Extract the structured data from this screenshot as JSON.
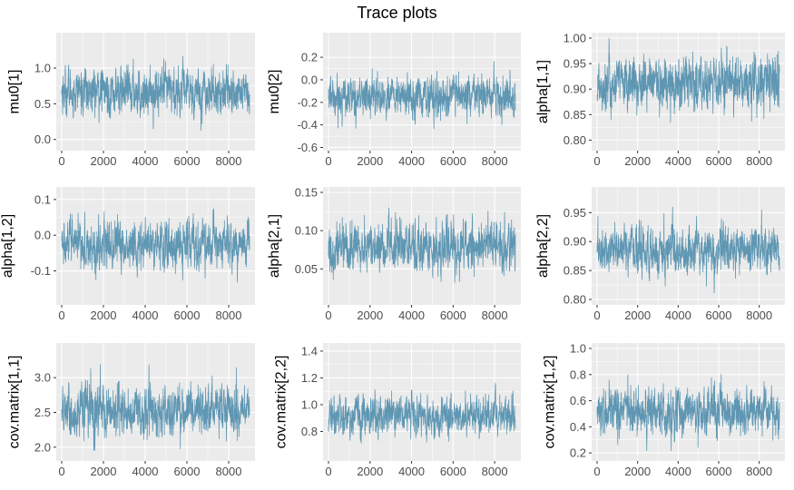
{
  "page": {
    "title": "Trace plots"
  },
  "colors": {
    "panel_bg": "#ebebeb",
    "grid_major": "#ffffff",
    "trace": "#5f97b3",
    "tick_text": "#4d4d4d"
  },
  "chart_data": [
    {
      "type": "line",
      "ylabel": "mu0[1]",
      "xlim": [
        0,
        8999
      ],
      "ylim": [
        -0.08,
        1.42
      ],
      "xticks": [
        0,
        2000,
        4000,
        6000,
        8000
      ],
      "xtick_labels": [
        "0",
        "2000",
        "4000",
        "6000",
        "8000"
      ],
      "yticks": [
        0.0,
        0.5,
        1.0
      ],
      "ytick_labels": [
        "0.0",
        "0.5",
        "1.0"
      ],
      "series": [
        {
          "n": 9000,
          "mean": 0.67,
          "sd": 0.22,
          "min": -0.08,
          "max": 1.38
        }
      ]
    },
    {
      "type": "line",
      "ylabel": "mu0[2]",
      "xlim": [
        0,
        8999
      ],
      "ylim": [
        -0.58,
        0.37
      ],
      "xticks": [
        0,
        2000,
        4000,
        6000,
        8000
      ],
      "xtick_labels": [
        "0",
        "2000",
        "4000",
        "6000",
        "8000"
      ],
      "yticks": [
        -0.6,
        -0.4,
        -0.2,
        0.0,
        0.2
      ],
      "ytick_labels": [
        "-0.6",
        "-0.4",
        "-0.2",
        "0.0",
        "0.2"
      ],
      "series": [
        {
          "n": 9000,
          "mean": -0.15,
          "sd": 0.12,
          "min": -0.57,
          "max": 0.35
        }
      ]
    },
    {
      "type": "line",
      "ylabel": "alpha[1,1]",
      "xlim": [
        0,
        8999
      ],
      "ylim": [
        0.79,
        1.0
      ],
      "xticks": [
        0,
        2000,
        4000,
        6000,
        8000
      ],
      "xtick_labels": [
        "0",
        "2000",
        "4000",
        "6000",
        "8000"
      ],
      "yticks": [
        0.8,
        0.85,
        0.9,
        0.95,
        1.0
      ],
      "ytick_labels": [
        "0.80",
        "0.85",
        "0.90",
        "0.95",
        "1.00"
      ],
      "series": [
        {
          "n": 9000,
          "mean": 0.91,
          "sd": 0.035,
          "min": 0.79,
          "max": 1.0
        }
      ]
    },
    {
      "type": "line",
      "ylabel": "alpha[1,2]",
      "xlim": [
        0,
        8999
      ],
      "ylim": [
        -0.18,
        0.12
      ],
      "xticks": [
        0,
        2000,
        4000,
        6000,
        8000
      ],
      "xtick_labels": [
        "0",
        "2000",
        "4000",
        "6000",
        "8000"
      ],
      "yticks": [
        -0.1,
        0.0,
        0.1
      ],
      "ytick_labels": [
        "-0.1",
        "0.0",
        "0.1"
      ],
      "series": [
        {
          "n": 9000,
          "mean": -0.03,
          "sd": 0.045,
          "min": -0.17,
          "max": 0.11
        }
      ]
    },
    {
      "type": "line",
      "ylabel": "alpha[2,1]",
      "xlim": [
        0,
        8999
      ],
      "ylim": [
        0.01,
        0.15
      ],
      "xticks": [
        0,
        2000,
        4000,
        6000,
        8000
      ],
      "xtick_labels": [
        "0",
        "2000",
        "4000",
        "6000",
        "8000"
      ],
      "yticks": [
        0.05,
        0.1,
        0.15
      ],
      "ytick_labels": [
        "0.05",
        "0.10",
        "0.15"
      ],
      "series": [
        {
          "n": 9000,
          "mean": 0.078,
          "sd": 0.022,
          "min": 0.015,
          "max": 0.145
        }
      ]
    },
    {
      "type": "line",
      "ylabel": "alpha[2,2]",
      "xlim": [
        0,
        8999
      ],
      "ylim": [
        0.8,
        0.985
      ],
      "xticks": [
        0,
        2000,
        4000,
        6000,
        8000
      ],
      "xtick_labels": [
        "0",
        "2000",
        "4000",
        "6000",
        "8000"
      ],
      "yticks": [
        0.8,
        0.85,
        0.9,
        0.95
      ],
      "ytick_labels": [
        "0.80",
        "0.85",
        "0.90",
        "0.95"
      ],
      "series": [
        {
          "n": 9000,
          "mean": 0.885,
          "sd": 0.026,
          "min": 0.8,
          "max": 0.985
        }
      ]
    },
    {
      "type": "line",
      "ylabel": "cov.matrix[1,1]",
      "xlim": [
        0,
        8999
      ],
      "ylim": [
        1.88,
        3.42
      ],
      "xticks": [
        0,
        2000,
        4000,
        6000,
        8000
      ],
      "xtick_labels": [
        "0",
        "2000",
        "4000",
        "6000",
        "8000"
      ],
      "yticks": [
        2.0,
        2.5,
        3.0
      ],
      "ytick_labels": [
        "2.0",
        "2.5",
        "3.0"
      ],
      "series": [
        {
          "n": 9000,
          "mean": 2.52,
          "sd": 0.24,
          "min": 1.9,
          "max": 3.4
        }
      ]
    },
    {
      "type": "line",
      "ylabel": "cov.matrix[2,2]",
      "xlim": [
        0,
        8999
      ],
      "ylim": [
        0.62,
        1.42
      ],
      "xticks": [
        0,
        2000,
        4000,
        6000,
        8000
      ],
      "xtick_labels": [
        "0",
        "2000",
        "4000",
        "6000",
        "8000"
      ],
      "yticks": [
        0.8,
        1.0,
        1.2,
        1.4
      ],
      "ytick_labels": [
        "0.8",
        "1.0",
        "1.2",
        "1.4"
      ],
      "series": [
        {
          "n": 9000,
          "mean": 0.92,
          "sd": 0.1,
          "min": 0.63,
          "max": 1.4
        }
      ]
    },
    {
      "type": "line",
      "ylabel": "cov.matrix[1,2]",
      "xlim": [
        0,
        8999
      ],
      "ylim": [
        0.18,
        1.0
      ],
      "xticks": [
        0,
        2000,
        4000,
        6000,
        8000
      ],
      "xtick_labels": [
        "0",
        "2000",
        "4000",
        "6000",
        "8000"
      ],
      "yticks": [
        0.2,
        0.4,
        0.6,
        0.8,
        1.0
      ],
      "ytick_labels": [
        "0.2",
        "0.4",
        "0.6",
        "0.8",
        "1.0"
      ],
      "series": [
        {
          "n": 9000,
          "mean": 0.52,
          "sd": 0.12,
          "min": 0.2,
          "max": 0.97
        }
      ]
    }
  ]
}
